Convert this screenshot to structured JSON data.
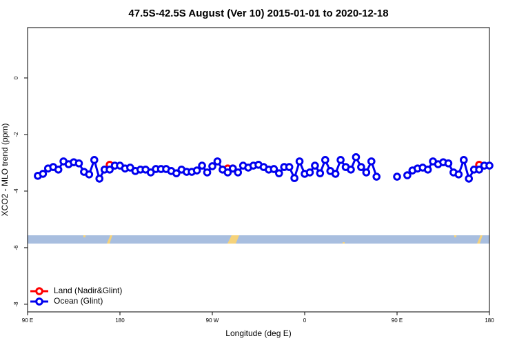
{
  "chart_data": {
    "type": "line",
    "title": "47.5S-42.5S August (Ver 10)   2015-01-01 to 2020-12-18",
    "xlabel": "Longitude (deg E)",
    "ylabel": "XCO2 - MLO trend (ppm)",
    "xlim": [
      90,
      540
    ],
    "ylim": [
      -8.27,
      1.78
    ],
    "xticks": [
      {
        "value": 90,
        "label": "90 E"
      },
      180,
      {
        "value": 270,
        "label": "90 W"
      },
      {
        "value": 360,
        "label": "0"
      },
      {
        "value": 450,
        "label": "90 E"
      },
      {
        "value": 540,
        "label": "180"
      }
    ],
    "yticks": [
      0,
      -2,
      -4,
      -6,
      -8
    ],
    "legend": "bottom-left",
    "series": [
      {
        "name": "Land (Nadir&Glint)",
        "color": "#ff0000",
        "x": [
          170,
          175,
          285,
          290,
          295,
          530
        ],
        "values": [
          -3.07,
          null,
          -3.2,
          -3.2,
          null,
          -3.07
        ]
      },
      {
        "name": "Ocean (Glint)",
        "color": "#0000ee",
        "x": [
          100,
          105,
          110,
          115,
          120,
          125,
          130,
          135,
          140,
          145,
          150,
          155,
          160,
          165,
          170,
          175,
          180,
          185,
          190,
          195,
          200,
          205,
          210,
          215,
          220,
          225,
          230,
          235,
          240,
          245,
          250,
          255,
          260,
          265,
          270,
          275,
          280,
          285,
          290,
          295,
          300,
          305,
          310,
          315,
          320,
          325,
          330,
          335,
          340,
          345,
          350,
          355,
          360,
          365,
          370,
          375,
          380,
          385,
          390,
          395,
          400,
          405,
          410,
          415,
          420,
          425,
          430,
          435,
          440,
          445,
          450,
          455,
          460,
          465,
          470,
          475,
          480,
          485,
          490,
          495,
          500,
          505,
          510,
          515,
          520,
          525,
          530,
          535,
          540
        ],
        "values": [
          -3.46,
          -3.39,
          -3.2,
          -3.15,
          -3.24,
          -2.95,
          -3.05,
          -2.98,
          -3.02,
          -3.32,
          -3.41,
          -2.9,
          -3.56,
          -3.24,
          -3.24,
          -3.1,
          -3.1,
          -3.2,
          -3.17,
          -3.29,
          -3.24,
          -3.24,
          -3.34,
          -3.22,
          -3.22,
          -3.22,
          -3.29,
          -3.37,
          -3.24,
          -3.32,
          -3.32,
          -3.27,
          -3.1,
          -3.34,
          -3.12,
          -2.95,
          -3.24,
          -3.34,
          -3.2,
          -3.34,
          -3.1,
          -3.17,
          -3.1,
          -3.07,
          -3.15,
          -3.24,
          -3.22,
          -3.37,
          -3.15,
          -3.15,
          -3.54,
          -2.95,
          -3.39,
          -3.34,
          -3.1,
          -3.37,
          -2.9,
          -3.29,
          -3.39,
          -2.9,
          -3.15,
          -3.24,
          -2.8,
          -3.15,
          -3.34,
          -2.95,
          -3.49,
          null,
          null,
          null,
          -3.49,
          null,
          -3.44,
          -3.27,
          -3.2,
          -3.17,
          -3.24,
          -2.95,
          -3.05,
          -2.98,
          -3.02,
          -3.34,
          -3.41,
          -2.9,
          -3.56,
          -3.24,
          -3.24,
          -3.1,
          -3.1
        ]
      }
    ]
  }
}
